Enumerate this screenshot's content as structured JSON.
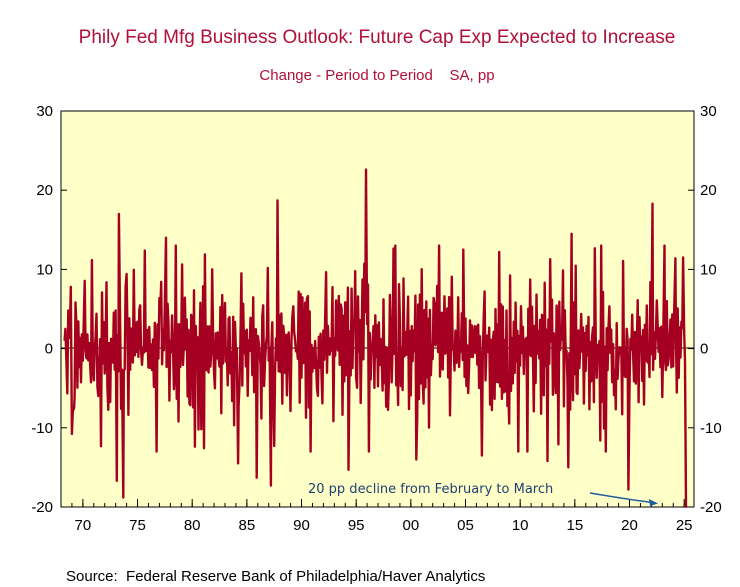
{
  "chart_data": {
    "type": "line",
    "title": "Phily Fed Mfg Business Outlook: Future Cap Exp Expected to Increase",
    "subtitle": "Change - Period to Period    SA, pp",
    "xlabel": "",
    "ylabel": "",
    "xlim": [
      1968.0,
      2025.9
    ],
    "ylim": [
      -20,
      30
    ],
    "y_ticks": [
      30,
      20,
      10,
      0,
      -10,
      -20
    ],
    "y_tick_labels": [
      "30",
      "20",
      "10",
      "0",
      "-10",
      "-20"
    ],
    "x_ticks": [
      1970,
      1975,
      1980,
      1985,
      1990,
      1995,
      2000,
      2005,
      2010,
      2015,
      2020,
      2025
    ],
    "x_tick_labels": [
      "70",
      "75",
      "80",
      "85",
      "90",
      "95",
      "00",
      "05",
      "10",
      "15",
      "20",
      "25"
    ],
    "zero_line": true,
    "series": [
      {
        "name": "Future Cap Exp Expected to Increase, change (pp)",
        "color": "#a50021",
        "frequency": "monthly",
        "start": 1968.33,
        "key_points": [
          {
            "x": 1968.4,
            "y": 2.5
          },
          {
            "x": 1968.9,
            "y": 7.8
          },
          {
            "x": 1969.2,
            "y": -7.5
          },
          {
            "x": 1973.1,
            "y": -16.7
          },
          {
            "x": 1973.3,
            "y": 17.0
          },
          {
            "x": 1973.7,
            "y": -18.8
          },
          {
            "x": 1977.6,
            "y": 14.0
          },
          {
            "x": 1984.2,
            "y": -14.5
          },
          {
            "x": 1985.9,
            "y": -16.3
          },
          {
            "x": 1987.2,
            "y": -17.3
          },
          {
            "x": 1987.8,
            "y": 18.7
          },
          {
            "x": 1994.3,
            "y": -15.3
          },
          {
            "x": 1995.9,
            "y": 22.6
          },
          {
            "x": 2000.5,
            "y": -14.0
          },
          {
            "x": 2004.8,
            "y": 12.5
          },
          {
            "x": 2006.5,
            "y": -13.5
          },
          {
            "x": 2012.5,
            "y": -14.2
          },
          {
            "x": 2014.4,
            "y": -15.0
          },
          {
            "x": 2014.7,
            "y": 14.5
          },
          {
            "x": 2019.9,
            "y": -17.8
          },
          {
            "x": 2022.1,
            "y": 18.3
          },
          {
            "x": 2023.2,
            "y": 13.0
          },
          {
            "x": 2024.2,
            "y": 11.4
          },
          {
            "x": 2024.5,
            "y": -3.7
          },
          {
            "x": 2024.9,
            "y": 11.5
          },
          {
            "x": 2025.17,
            "y": -20.1
          }
        ]
      }
    ],
    "annotations": [
      {
        "text": "20 pp decline from February to March",
        "target_x": 2025.17,
        "target_y": -20.1
      }
    ],
    "source": "Source:  Federal Reserve Bank of Philadelphia/Haver Analytics"
  }
}
